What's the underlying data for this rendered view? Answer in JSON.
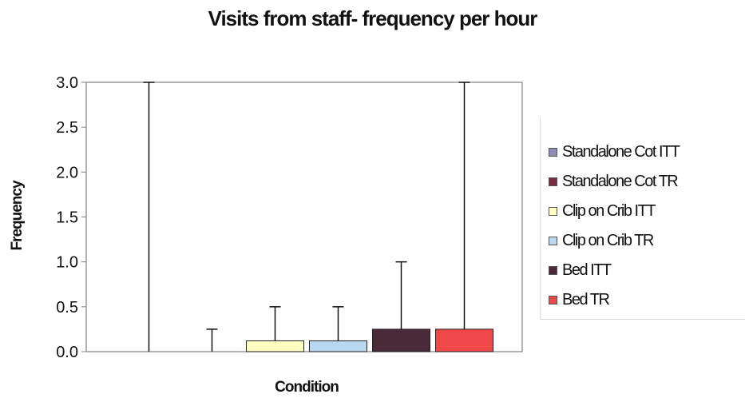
{
  "chart_data": {
    "type": "bar",
    "title": "Visits from staff- frequency per hour",
    "xlabel": "Condition",
    "ylabel": "Frequency",
    "ylim": [
      0,
      3.0
    ],
    "yticks": [
      "0.0",
      "0.5",
      "1.0",
      "1.5",
      "2.0",
      "2.5",
      "3.0"
    ],
    "grid": false,
    "legend_position": "right",
    "series": [
      {
        "name": "Standalone Cot ITT",
        "value": 0.0,
        "error_upper": 3.0,
        "color": "#8c8cb8"
      },
      {
        "name": "Standalone Cot TR",
        "value": 0.0,
        "error_upper": 0.25,
        "color": "#7a2a40"
      },
      {
        "name": "Clip on Crib ITT",
        "value": 0.12,
        "error_upper": 0.5,
        "color": "#ffffc0"
      },
      {
        "name": "Clip on Crib TR",
        "value": 0.12,
        "error_upper": 0.5,
        "color": "#b8d8f0"
      },
      {
        "name": "Bed ITT",
        "value": 0.25,
        "error_upper": 1.0,
        "color": "#4a2a38"
      },
      {
        "name": "Bed TR",
        "value": 0.25,
        "error_upper": 3.0,
        "color": "#f04848"
      }
    ]
  }
}
